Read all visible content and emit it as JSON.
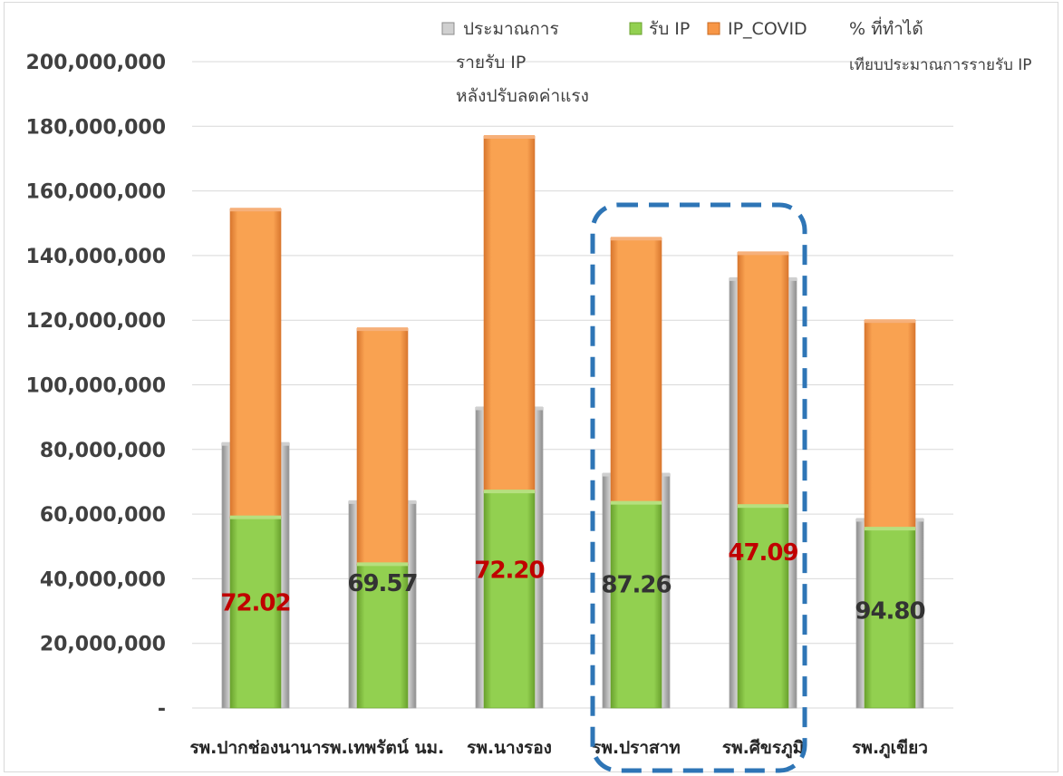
{
  "chart_data": {
    "type": "bar",
    "title": "",
    "xlabel": "",
    "ylabel": "",
    "ylim": [
      0,
      200000000
    ],
    "y_ticks": [
      "-",
      "20,000,000",
      "40,000,000",
      "60,000,000",
      "80,000,000",
      "100,000,000",
      "120,000,000",
      "140,000,000",
      "160,000,000",
      "180,000,000",
      "200,000,000"
    ],
    "y_tick_values": [
      0,
      20000000,
      40000000,
      60000000,
      80000000,
      100000000,
      120000000,
      140000000,
      160000000,
      180000000,
      200000000
    ],
    "grid": true,
    "legend_position": "top",
    "categories": [
      "รพ.ปากช่องนานา",
      "รพ.เทพรัตน์ นม.",
      "รพ.นางรอง",
      "รพ.ปราสาท",
      "รพ.ศีขรภูมิ",
      "รพ.ภูเขียว"
    ],
    "legend": {
      "budget": [
        "ประมาณการ",
        "รายรับ IP",
        "หลังปรับลดค่าแรง"
      ],
      "ip": "รับ IP",
      "covid": "IP_COVID",
      "percent": [
        "% ที่ทำได้",
        "เทียบประมาณการรายรับ IP"
      ]
    },
    "series": [
      {
        "name": "ประมาณการรายรับ IP หลังปรับลดค่าแรง",
        "color": "#bfbfbf",
        "values": [
          82000000,
          64000000,
          93000000,
          72500000,
          133000000,
          58500000
        ]
      },
      {
        "name": "รับ IP",
        "color": "#92d050",
        "values": [
          59000000,
          44500000,
          67000000,
          63500000,
          62500000,
          55500000
        ]
      },
      {
        "name": "IP_COVID",
        "color": "#f79646",
        "values": [
          95500000,
          73000000,
          110000000,
          82000000,
          78500000,
          64500000
        ]
      }
    ],
    "percent_labels": [
      "72.02",
      "69.57",
      "72.20",
      "87.26",
      "47.09",
      "94.80"
    ],
    "percent_label_colors": [
      "#c00000",
      "#333333",
      "#c00000",
      "#333333",
      "#c00000",
      "#333333"
    ],
    "percent_label_y": [
      33000000,
      39000000,
      43000000,
      38500000,
      48500000,
      30500000
    ],
    "highlight": {
      "from_index": 3,
      "to_index": 4,
      "color": "#2e75b6"
    }
  }
}
